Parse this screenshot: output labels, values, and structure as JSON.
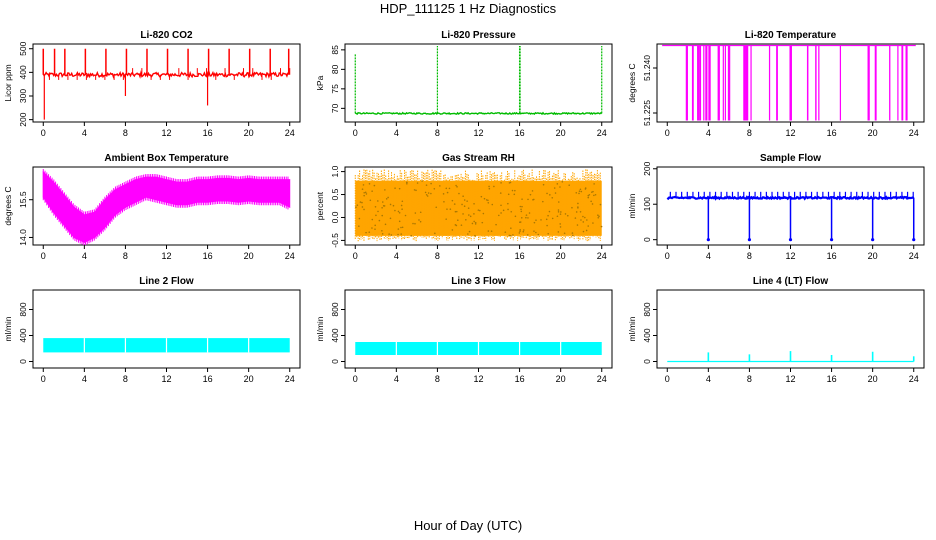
{
  "figure": {
    "title": "HDP_111125  1 Hz Diagnostics",
    "xlabel_common": "Hour of Day (UTC)"
  },
  "chart_data": [
    {
      "type": "line",
      "title": "Li-820 CO2",
      "ylabel": "Licor ppm",
      "color": "#ff0000",
      "x_ticks": [
        "0",
        "4",
        "8",
        "12",
        "16",
        "20",
        "24"
      ],
      "xlim": [
        -1,
        25
      ],
      "y_ticks": [
        200,
        300,
        400,
        500
      ],
      "ylim": [
        190,
        520
      ],
      "baseline": 390,
      "noise": 15,
      "spikes_up": [
        0,
        1.1,
        2.1,
        4.1,
        6.1,
        8.1,
        10.1,
        12.1,
        14.1,
        16.1,
        18.1,
        20.1,
        22.1,
        23.9
      ],
      "spike_up_value": 500,
      "spikes_down": [
        0.1,
        8.0,
        16.0
      ],
      "spike_down_values": [
        200,
        300,
        260
      ]
    },
    {
      "type": "line",
      "title": "Li-820 Pressure",
      "ylabel": "kPa",
      "color": "#00bb00",
      "x_ticks": [
        "0",
        "4",
        "8",
        "12",
        "16",
        "20",
        "24"
      ],
      "xlim": [
        -1,
        25
      ],
      "y_ticks": [
        70,
        75,
        80,
        85
      ],
      "ylim": [
        66.5,
        86.5
      ],
      "baseline": 68.7,
      "noise": 0.3,
      "spikes_up": [
        0,
        8,
        16,
        16.05,
        24
      ],
      "spike_up_value": 86,
      "spike_first_value": 84
    },
    {
      "type": "line",
      "title": "Li-820 Temperature",
      "ylabel": "degrees C",
      "color": "#ff00ff",
      "x_ticks": [
        "0",
        "4",
        "8",
        "12",
        "16",
        "20",
        "24"
      ],
      "xlim": [
        -1,
        25
      ],
      "y_ticks": [
        "51.225",
        "51.240"
      ],
      "ylim": [
        51.222,
        51.248
      ],
      "baseline": 51.2475,
      "drop_to": 51.2225,
      "drops": [
        1.8,
        2.4,
        2.9,
        3.1,
        3.5,
        3.7,
        4.0,
        4.9,
        5.0,
        5.4,
        5.6,
        5.9,
        6.0,
        7.4,
        7.6,
        7.7,
        8.1,
        9.9,
        10.6,
        11.9,
        12.0,
        13.6,
        14.4,
        14.7,
        16.8,
        19.5,
        20.2,
        21.6,
        22.4,
        22.8,
        23.2
      ]
    },
    {
      "type": "line",
      "title": "Ambient Box Temperature",
      "ylabel": "degrees C",
      "color": "#ff00ff",
      "x_ticks": [
        "0",
        "4",
        "8",
        "12",
        "16",
        "20",
        "24"
      ],
      "xlim": [
        -1,
        25
      ],
      "y_ticks": [
        "14.0",
        "15.5"
      ],
      "y_tick_values": [
        14.0,
        15.5
      ],
      "ylim": [
        13.7,
        16.8
      ],
      "curve_x": [
        0,
        1,
        2,
        3,
        4,
        5,
        6,
        7,
        8,
        9,
        10,
        11,
        12,
        13,
        14,
        15,
        16,
        17,
        18,
        19,
        20,
        21,
        22,
        23,
        24
      ],
      "curve_upper": [
        16.6,
        16.2,
        15.7,
        15.2,
        14.9,
        15.0,
        15.5,
        15.9,
        16.1,
        16.3,
        16.4,
        16.4,
        16.3,
        16.2,
        16.2,
        16.3,
        16.3,
        16.35,
        16.35,
        16.3,
        16.35,
        16.3,
        16.3,
        16.3,
        16.3
      ],
      "curve_lower": [
        15.6,
        15.0,
        14.5,
        14.0,
        13.8,
        14.0,
        14.4,
        14.9,
        15.2,
        15.4,
        15.6,
        15.5,
        15.4,
        15.3,
        15.3,
        15.4,
        15.4,
        15.45,
        15.45,
        15.4,
        15.45,
        15.4,
        15.4,
        15.4,
        15.2
      ]
    },
    {
      "type": "scatter",
      "title": "Gas Stream RH",
      "ylabel": "percent",
      "color": "#ffa500",
      "color2": "#aa7700",
      "x_ticks": [
        "0",
        "4",
        "8",
        "12",
        "16",
        "20",
        "24"
      ],
      "xlim": [
        -1,
        25
      ],
      "y_ticks": [
        "-0.5",
        "0.0",
        "0.5",
        "1.0"
      ],
      "y_tick_values": [
        -0.5,
        0.0,
        0.5,
        1.0
      ],
      "ylim": [
        -0.6,
        1.1
      ],
      "band_low": -0.4,
      "band_high": 0.8
    },
    {
      "type": "line",
      "title": "Sample Flow",
      "ylabel": "ml/min",
      "color": "#0000ff",
      "x_ticks": [
        "0",
        "4",
        "8",
        "12",
        "16",
        "20",
        "24"
      ],
      "xlim": [
        -1,
        25
      ],
      "y_ticks": [
        0,
        100,
        200
      ],
      "ylim": [
        -15,
        205
      ],
      "baseline": 118,
      "noise": 4,
      "pulse_value": 135,
      "drops": [
        4,
        8,
        12,
        16,
        20,
        24
      ],
      "drop_value": 0
    },
    {
      "type": "line",
      "title": "Line 2 Flow",
      "ylabel": "ml/min",
      "color": "#00ffff",
      "x_ticks": [
        "0",
        "4",
        "8",
        "12",
        "16",
        "20",
        "24"
      ],
      "xlim": [
        -1,
        25
      ],
      "y_ticks": [
        0,
        400,
        800
      ],
      "ylim": [
        -100,
        1100
      ],
      "band_low": 140,
      "band_high": 360,
      "gaps": [
        4,
        8,
        12,
        16,
        20
      ]
    },
    {
      "type": "line",
      "title": "Line 3 Flow",
      "ylabel": "ml/min",
      "color": "#00ffff",
      "x_ticks": [
        "0",
        "4",
        "8",
        "12",
        "16",
        "20",
        "24"
      ],
      "xlim": [
        -1,
        25
      ],
      "y_ticks": [
        0,
        400,
        800
      ],
      "ylim": [
        -100,
        1100
      ],
      "band_low": 100,
      "band_high": 300,
      "gaps": [
        4,
        8,
        12,
        16,
        20
      ]
    },
    {
      "type": "line",
      "title": "Line 4 (LT) Flow",
      "ylabel": "ml/min",
      "color": "#00ffff",
      "x_ticks": [
        "0",
        "4",
        "8",
        "12",
        "16",
        "20",
        "24"
      ],
      "xlim": [
        -1,
        25
      ],
      "y_ticks": [
        0,
        400,
        800
      ],
      "ylim": [
        -100,
        1100
      ],
      "baseline": 0,
      "spikes_up": [
        4,
        8,
        12,
        16,
        20,
        24
      ],
      "spike_values": [
        140,
        110,
        160,
        100,
        150,
        80
      ]
    }
  ]
}
